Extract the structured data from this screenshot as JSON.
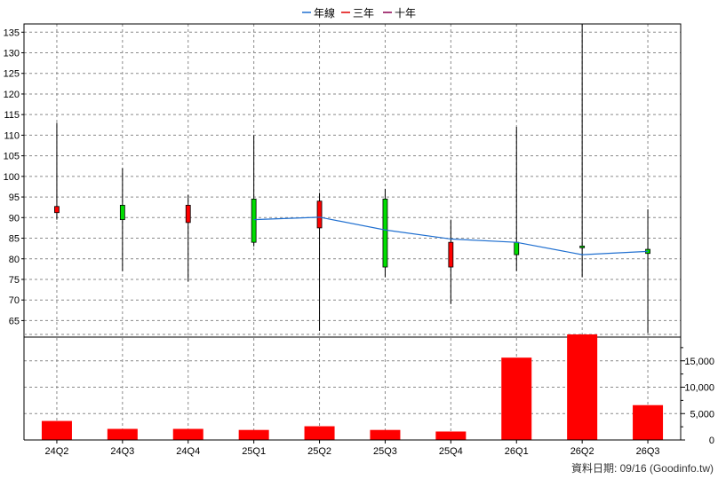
{
  "legend": [
    {
      "label": "年線",
      "color": "#1f6fd0"
    },
    {
      "label": "三年",
      "color": "#e00000"
    },
    {
      "label": "十年",
      "color": "#8b0050"
    }
  ],
  "footer": {
    "text": "資料日期: 09/16  (Goodinfo.tw)"
  },
  "chart_data": [
    {
      "type": "candlestick",
      "categories": [
        "24Q2",
        "24Q3",
        "24Q4",
        "25Q1",
        "25Q2",
        "25Q3",
        "25Q4",
        "26Q1",
        "26Q2",
        "26Q3"
      ],
      "ylim": [
        61,
        137
      ],
      "yticks": [
        65,
        70,
        75,
        80,
        85,
        90,
        95,
        100,
        105,
        110,
        115,
        120,
        125,
        130,
        135
      ],
      "grid": true,
      "legend_position": "top-center",
      "up_color": "#00dd00",
      "down_color": "#ff0000",
      "candles": [
        {
          "open": 92.7,
          "close": 91.2,
          "high": 113.0,
          "low": 89.5
        },
        {
          "open": 89.5,
          "close": 93.0,
          "high": 102.0,
          "low": 77.0
        },
        {
          "open": 93.0,
          "close": 88.8,
          "high": 95.5,
          "low": 74.5
        },
        {
          "open": 84.0,
          "close": 94.5,
          "high": 110.0,
          "low": 83.0
        },
        {
          "open": 94.0,
          "close": 87.5,
          "high": 96.0,
          "low": 62.5
        },
        {
          "open": 78.0,
          "close": 94.5,
          "high": 97.0,
          "low": 75.5
        },
        {
          "open": 84.0,
          "close": 78.0,
          "high": 89.5,
          "low": 69.0
        },
        {
          "open": 81.0,
          "close": 84.0,
          "high": 112.0,
          "low": 77.0
        },
        {
          "open": 82.9,
          "close": 83.1,
          "high": 137.0,
          "low": 75.5
        },
        {
          "open": 81.3,
          "close": 82.3,
          "high": 92.0,
          "low": 62.0
        }
      ],
      "series": [
        {
          "name": "年線",
          "values": [
            null,
            null,
            null,
            89.5,
            90.1,
            87.0,
            84.8,
            84.0,
            81.0,
            81.8
          ]
        }
      ]
    },
    {
      "type": "bar",
      "categories": [
        "24Q2",
        "24Q3",
        "24Q4",
        "25Q1",
        "25Q2",
        "25Q3",
        "25Q4",
        "26Q1",
        "26Q2",
        "26Q3"
      ],
      "values": [
        3600,
        2100,
        2100,
        1900,
        2600,
        1900,
        1600,
        15600,
        20000,
        6600
      ],
      "ylim": [
        0,
        20000
      ],
      "yticks": [
        0,
        5000,
        10000,
        15000
      ],
      "ytick_labels": [
        "0",
        "5,000",
        "10,000",
        "15,000"
      ],
      "bar_color": "#ff0000",
      "grid": true
    }
  ]
}
